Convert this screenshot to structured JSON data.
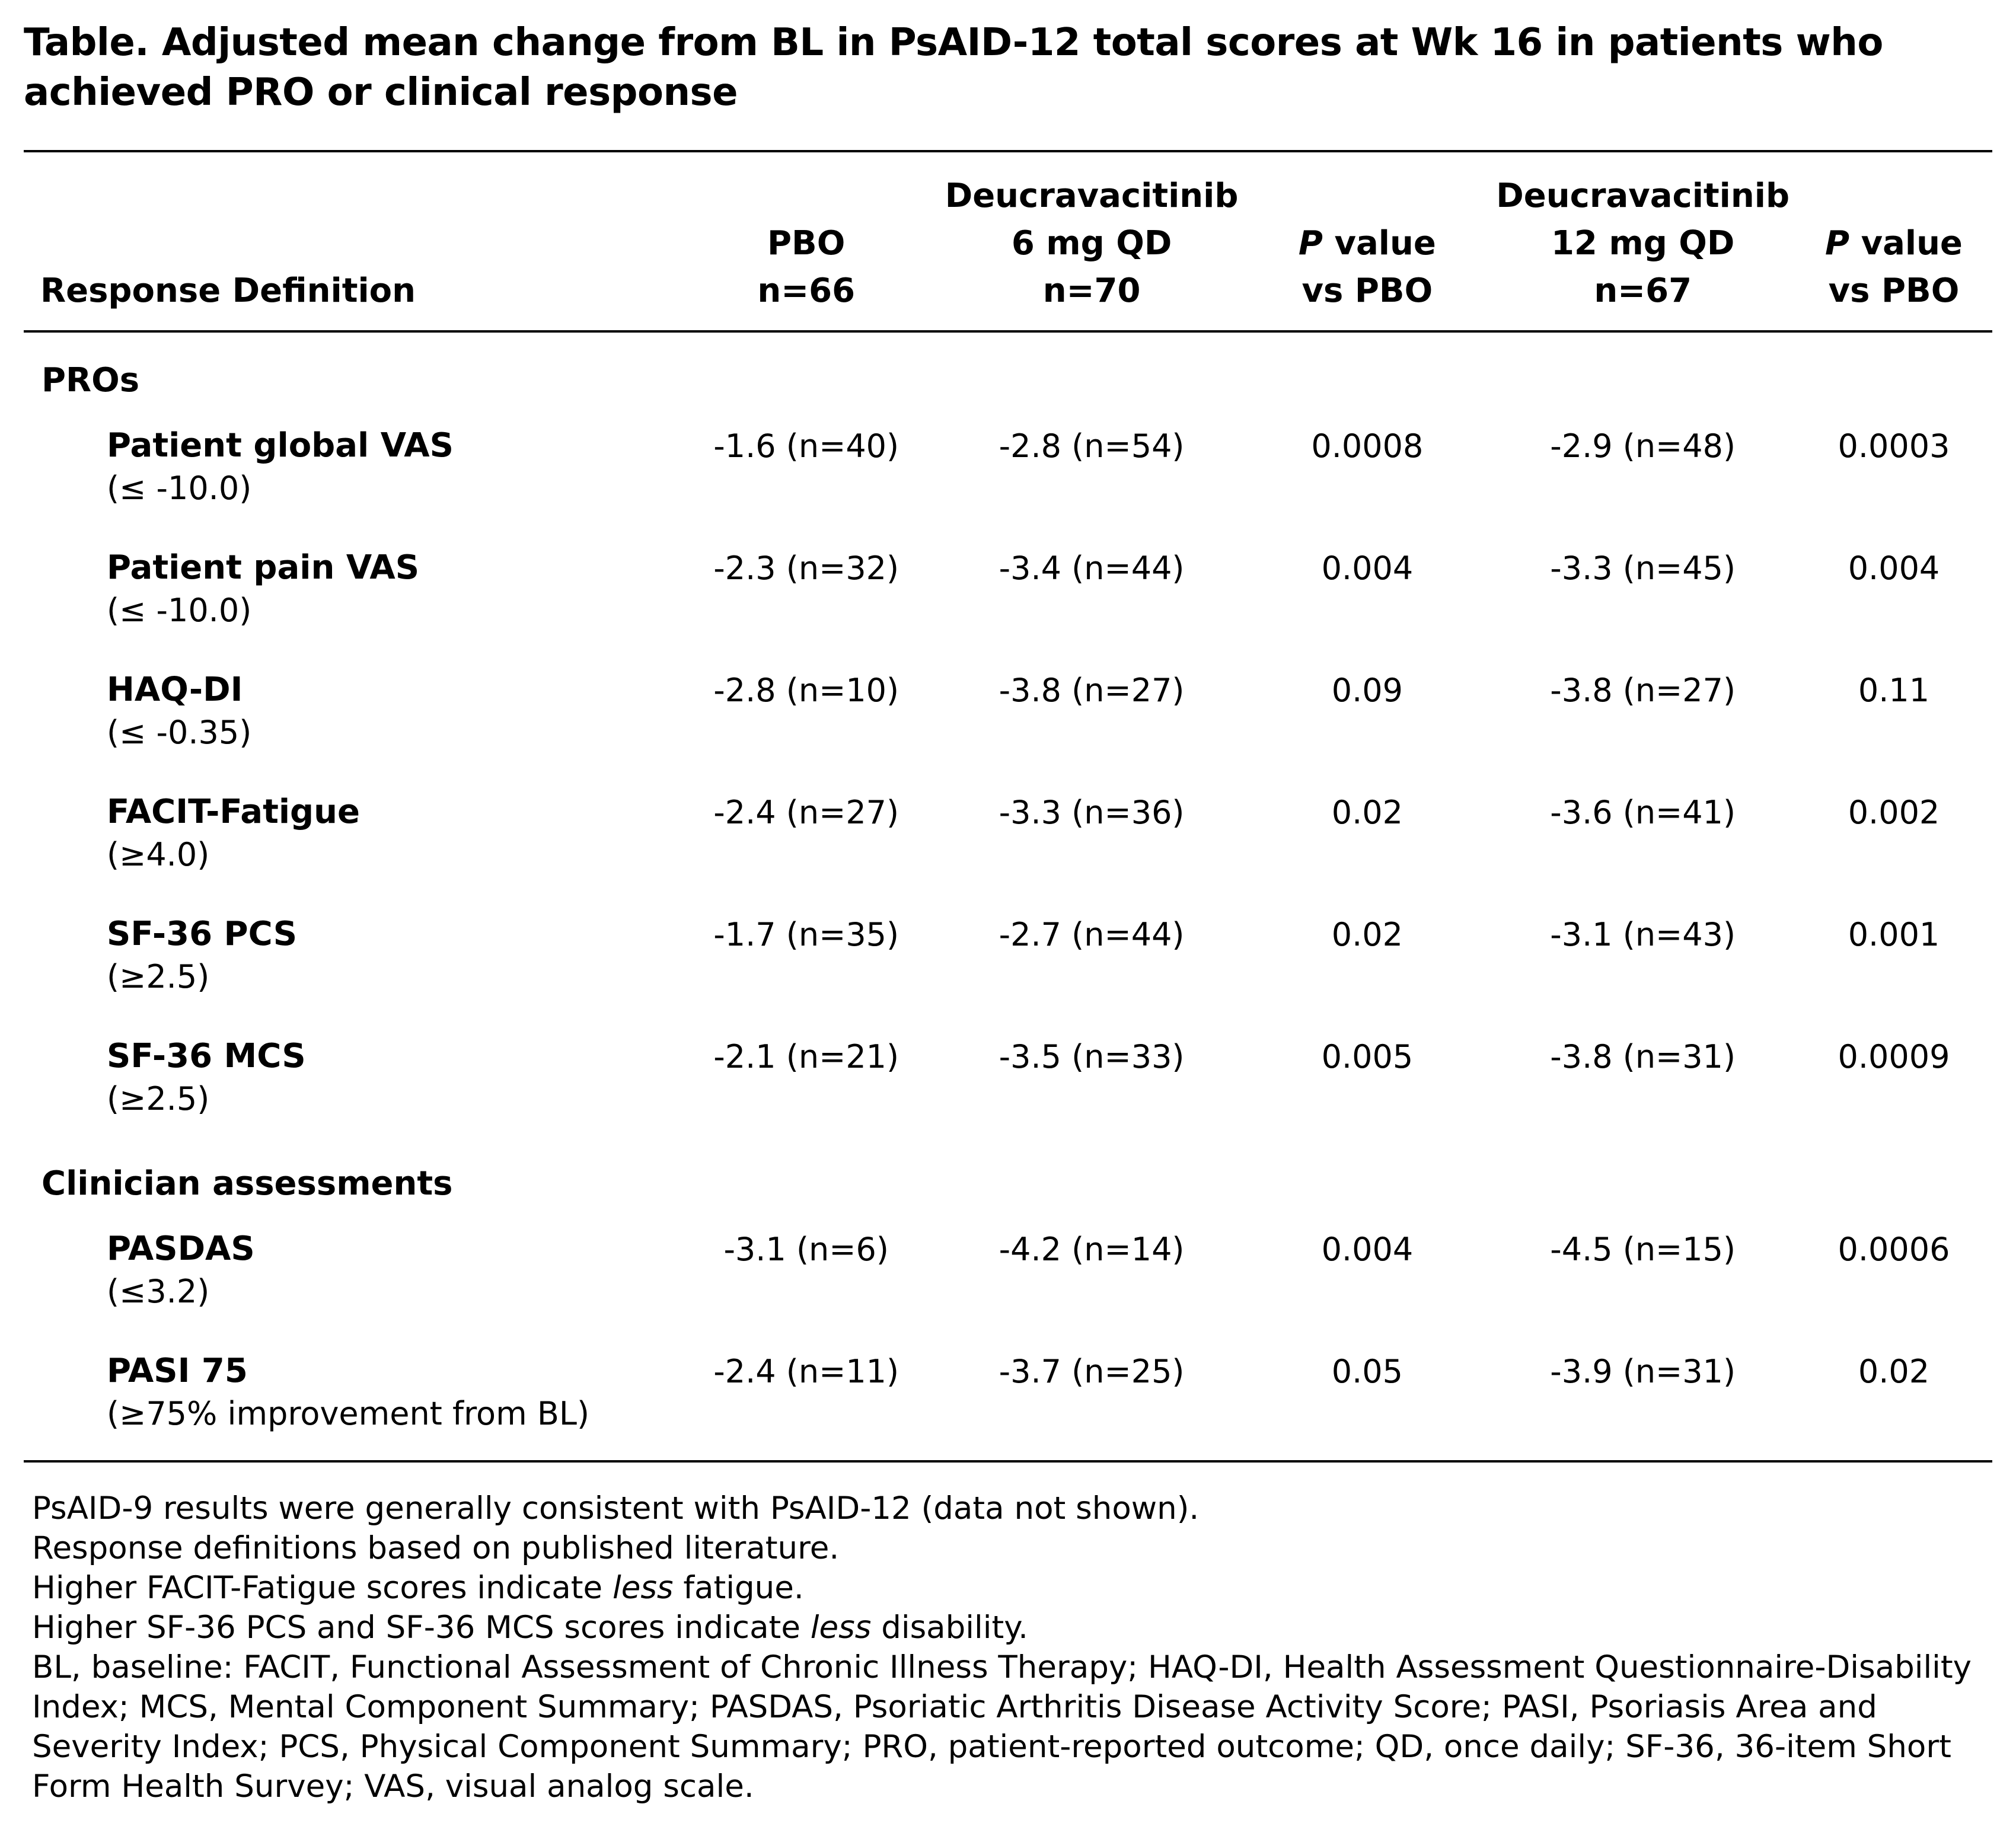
{
  "page": {
    "title": "Table. Adjusted mean change from BL in PsAID-12 total scores at Wk 16 in patients who achieved PRO or clinical response"
  },
  "table": {
    "header": {
      "response_definition": "Response Definition",
      "pbo": [
        "PBO",
        "n=66"
      ],
      "deucra6": [
        "Deucravacitinib",
        "6 mg QD",
        "n=70"
      ],
      "pvalue1": {
        "p": "P",
        "rest": " value",
        "line2": "vs PBO"
      },
      "deucra12": [
        "Deucravacitinib",
        "12 mg QD",
        "n=67"
      ],
      "pvalue2": {
        "p": "P",
        "rest": " value",
        "line2": "vs PBO"
      }
    },
    "sections": [
      {
        "header": "PROs",
        "rows": [
          {
            "name": "Patient global VAS",
            "criterion": "(≤ -10.0)",
            "values": [
              "-1.6 (n=40)",
              "-2.8 (n=54)",
              "0.0008",
              "-2.9 (n=48)",
              "0.0003"
            ]
          },
          {
            "name": "Patient pain VAS",
            "criterion": "(≤ -10.0)",
            "values": [
              "-2.3 (n=32)",
              "-3.4 (n=44)",
              "0.004",
              "-3.3 (n=45)",
              "0.004"
            ]
          },
          {
            "name": "HAQ-DI",
            "criterion": "(≤ -0.35)",
            "values": [
              "-2.8 (n=10)",
              "-3.8 (n=27)",
              "0.09",
              "-3.8 (n=27)",
              "0.11"
            ]
          },
          {
            "name": "FACIT-Fatigue",
            "criterion": "(≥4.0)",
            "values": [
              "-2.4 (n=27)",
              "-3.3 (n=36)",
              "0.02",
              "-3.6 (n=41)",
              "0.002"
            ]
          },
          {
            "name": "SF-36 PCS",
            "criterion": "(≥2.5)",
            "values": [
              "-1.7 (n=35)",
              "-2.7 (n=44)",
              "0.02",
              "-3.1 (n=43)",
              "0.001"
            ]
          },
          {
            "name": "SF-36 MCS",
            "criterion": "(≥2.5)",
            "values": [
              "-2.1 (n=21)",
              "-3.5 (n=33)",
              "0.005",
              "-3.8 (n=31)",
              "0.0009"
            ]
          }
        ]
      },
      {
        "header": "Clinician assessments",
        "rows": [
          {
            "name": "PASDAS",
            "criterion": "(≤3.2)",
            "values": [
              "-3.1 (n=6)",
              "-4.2 (n=14)",
              "0.004",
              "-4.5 (n=15)",
              "0.0006"
            ]
          },
          {
            "name": "PASI 75",
            "criterion": "(≥75% improvement from BL)",
            "values": [
              "-2.4 (n=11)",
              "-3.7 (n=25)",
              "0.05",
              "-3.9 (n=31)",
              "0.02"
            ]
          }
        ]
      }
    ]
  },
  "footnotes": [
    [
      {
        "text": "PsAID-9 results were generally consistent with PsAID-12 (data not shown)."
      }
    ],
    [
      {
        "text": "Response definitions based on published literature."
      }
    ],
    [
      {
        "text": "Higher FACIT-Fatigue scores indicate "
      },
      {
        "text": "less",
        "italic": true
      },
      {
        "text": " fatigue."
      }
    ],
    [
      {
        "text": "Higher SF-36 PCS and SF-36 MCS scores indicate "
      },
      {
        "text": "less",
        "italic": true
      },
      {
        "text": " disability."
      }
    ],
    [
      {
        "text": "BL, baseline: FACIT, Functional Assessment of Chronic Illness Therapy; HAQ-DI, Health Assessment Questionnaire-Disability Index; MCS, Mental Component Summary; PASDAS, Psoriatic Arthritis Disease Activity Score; PASI, Psoriasis Area and Severity Index; PCS, Physical Component Summary; PRO, patient-reported outcome; QD, once daily; SF-36, 36-item Short Form Health Survey; VAS, visual analog scale."
      }
    ]
  ]
}
